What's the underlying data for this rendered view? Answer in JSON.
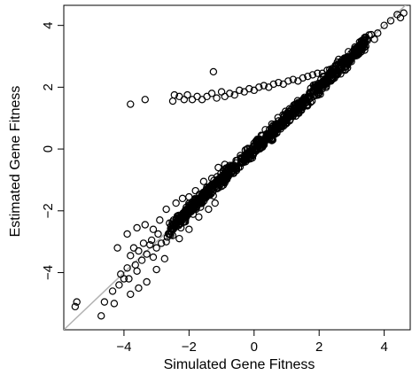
{
  "chart_data": {
    "type": "scatter",
    "title": "",
    "xlabel": "Simulated Gene Fitness",
    "ylabel": "Estimated Gene Fitness",
    "xlim": [
      -5.85,
      4.8
    ],
    "ylim": [
      -5.85,
      4.65
    ],
    "xticks": [
      -4,
      -2,
      0,
      2,
      4
    ],
    "yticks": [
      -4,
      -2,
      0,
      2,
      4
    ],
    "xtick_labels": [
      "−4",
      "−2",
      "0",
      "2",
      "4"
    ],
    "ytick_labels": [
      "−4",
      "−2",
      "0",
      "2",
      "4"
    ],
    "grid": false,
    "legend": "none",
    "reference_line": {
      "slope": 1,
      "intercept": 0,
      "color": "#b3b3b3"
    },
    "series": [
      {
        "marker": "open-circle",
        "color": "#000000",
        "points": [
          [
            -5.5,
            -5.1
          ],
          [
            -5.45,
            -4.95
          ],
          [
            -4.7,
            -5.4
          ],
          [
            -4.6,
            -4.95
          ],
          [
            -4.35,
            -4.6
          ],
          [
            -4.3,
            -5.0
          ],
          [
            -4.15,
            -4.4
          ],
          [
            -4.1,
            -4.05
          ],
          [
            -4.0,
            -4.2
          ],
          [
            -3.9,
            -3.85
          ],
          [
            -3.85,
            -4.2
          ],
          [
            -3.8,
            -3.45
          ],
          [
            -3.7,
            -3.2
          ],
          [
            -3.65,
            -3.75
          ],
          [
            -3.6,
            -3.95
          ],
          [
            -3.55,
            -3.3
          ],
          [
            -3.45,
            -3.6
          ],
          [
            -3.4,
            -3.05
          ],
          [
            -3.3,
            -3.4
          ],
          [
            -3.2,
            -3.1
          ],
          [
            -3.15,
            -2.95
          ],
          [
            -3.1,
            -3.5
          ],
          [
            -3.0,
            -3.2
          ],
          [
            -2.95,
            -2.75
          ],
          [
            -2.85,
            -3.05
          ],
          [
            -2.7,
            -3.0
          ],
          [
            -2.6,
            -2.4
          ],
          [
            -2.5,
            -2.8
          ],
          [
            -2.4,
            -2.3
          ],
          [
            -2.25,
            -2.55
          ],
          [
            -3.8,
            -4.7
          ],
          [
            -3.55,
            -4.5
          ],
          [
            -3.3,
            -4.3
          ],
          [
            -3.0,
            -3.9
          ],
          [
            -2.75,
            -3.55
          ],
          [
            -4.2,
            -3.2
          ],
          [
            -3.9,
            -2.75
          ],
          [
            -3.6,
            -2.55
          ],
          [
            -3.35,
            -2.45
          ],
          [
            -3.1,
            -2.6
          ],
          [
            -2.9,
            -2.3
          ],
          [
            -2.7,
            -1.95
          ],
          [
            -2.4,
            -1.75
          ],
          [
            -2.2,
            -1.6
          ],
          [
            -2.0,
            -1.55
          ],
          [
            -1.8,
            -1.35
          ],
          [
            -1.55,
            -1.05
          ],
          [
            -1.3,
            -0.95
          ],
          [
            -1.1,
            -0.6
          ],
          [
            -0.9,
            -0.5
          ],
          [
            -2.3,
            -2.9
          ],
          [
            -2.0,
            -2.6
          ],
          [
            -1.7,
            -2.2
          ],
          [
            -1.4,
            -1.95
          ],
          [
            -1.2,
            -1.75
          ],
          [
            3.6,
            3.7
          ],
          [
            3.8,
            3.75
          ],
          [
            4.0,
            4.0
          ],
          [
            4.2,
            4.15
          ],
          [
            4.4,
            4.35
          ],
          [
            4.5,
            4.25
          ],
          [
            4.6,
            4.4
          ],
          [
            3.3,
            3.5
          ],
          [
            3.1,
            3.3
          ],
          [
            2.9,
            3.15
          ],
          [
            3.4,
            3.2
          ],
          [
            3.7,
            3.55
          ],
          [
            2.6,
            2.9
          ],
          [
            2.8,
            2.55
          ],
          [
            -3.8,
            1.45
          ],
          [
            -3.35,
            1.6
          ],
          [
            -1.25,
            2.5
          ],
          [
            -2.5,
            1.55
          ],
          [
            -2.45,
            1.75
          ],
          [
            -2.3,
            1.7
          ],
          [
            -2.15,
            1.6
          ],
          [
            -2.05,
            1.75
          ],
          [
            -1.9,
            1.6
          ],
          [
            -1.75,
            1.7
          ],
          [
            -1.6,
            1.6
          ],
          [
            -1.45,
            1.7
          ],
          [
            -1.3,
            1.8
          ],
          [
            -1.15,
            1.65
          ],
          [
            -1.0,
            1.85
          ],
          [
            -0.9,
            1.7
          ],
          [
            -0.75,
            1.8
          ],
          [
            -0.6,
            1.75
          ],
          [
            -0.45,
            1.9
          ],
          [
            -0.3,
            1.85
          ],
          [
            -0.15,
            1.95
          ],
          [
            0.0,
            1.9
          ],
          [
            0.15,
            2.0
          ],
          [
            0.3,
            2.05
          ],
          [
            0.45,
            2.0
          ],
          [
            0.6,
            2.1
          ],
          [
            0.75,
            2.15
          ],
          [
            0.9,
            2.1
          ],
          [
            1.05,
            2.2
          ],
          [
            1.2,
            2.25
          ],
          [
            1.35,
            2.2
          ],
          [
            1.5,
            2.3
          ],
          [
            1.65,
            2.35
          ],
          [
            1.8,
            2.4
          ],
          [
            1.95,
            2.45
          ],
          [
            2.1,
            2.45
          ],
          [
            2.25,
            2.55
          ],
          [
            2.4,
            2.6
          ]
        ],
        "band": {
          "x_from": -2.6,
          "x_to": 3.5,
          "slope": 1.0,
          "intercept": 0.0,
          "half_width": 0.22
        }
      }
    ]
  }
}
